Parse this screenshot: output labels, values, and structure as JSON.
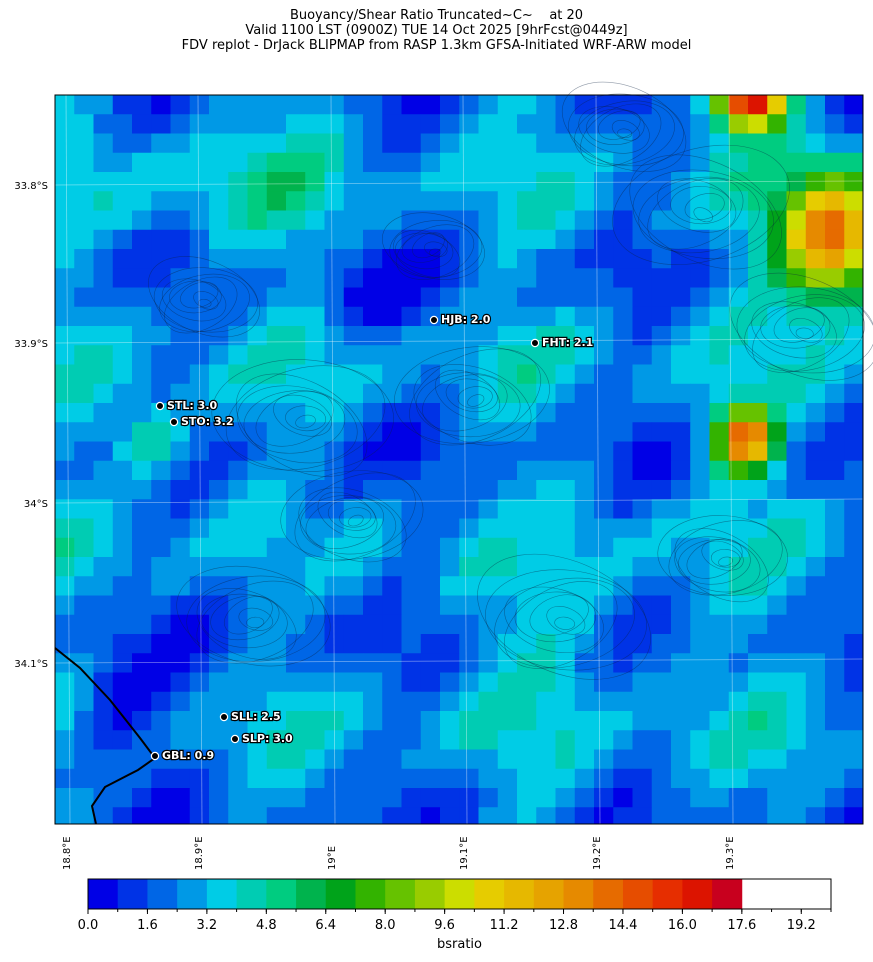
{
  "title": {
    "line1": "Buoyancy/Shear Ratio Truncated~C~    at 20",
    "line2": "Valid 1100 LST (0900Z) TUE 14 Oct 2025 [9hrFcst@0449z]",
    "line3": "FDV replot - DrJack BLIPMAP from RASP 1.3km GFSA-Initiated WRF-ARW model"
  },
  "map": {
    "lat_labels": [
      "33.8°S",
      "33.9°S",
      "34°S",
      "34.1°S"
    ],
    "lon_labels": [
      "18.8°E",
      "18.9°E",
      "19°E",
      "19.1°E",
      "19.2°E",
      "19.3°E"
    ],
    "stations": [
      {
        "id": "HJB",
        "label": "HJB: 2.0",
        "value": 2.0
      },
      {
        "id": "FHT",
        "label": "FHT: 2.1",
        "value": 2.1
      },
      {
        "id": "STL",
        "label": "STL: 3.0",
        "value": 3.0
      },
      {
        "id": "STO",
        "label": "STO: 3.2",
        "value": 3.2
      },
      {
        "id": "SLL",
        "label": "SLL: 2.5",
        "value": 2.5
      },
      {
        "id": "SLP",
        "label": "SLP: 3.0",
        "value": 3.0
      },
      {
        "id": "GBL",
        "label": "GBL: 0.9",
        "value": 0.9
      }
    ]
  },
  "colorbar": {
    "label": "bsratio",
    "min": 0.0,
    "max": 20.0,
    "step": 0.8,
    "tick_labels": [
      "0.0",
      "1.6",
      "3.2",
      "4.8",
      "6.4",
      "8.0",
      "9.6",
      "11.2",
      "12.8",
      "14.4",
      "16.0",
      "17.6",
      "19.2"
    ],
    "colors": [
      "#0000e6",
      "#0033e6",
      "#0066e6",
      "#0099e6",
      "#00cce6",
      "#00ccb3",
      "#00cc80",
      "#00b34d",
      "#00a31a",
      "#33b300",
      "#66c200",
      "#99cc00",
      "#ccdd00",
      "#e6cc00",
      "#e6b800",
      "#e6a300",
      "#e68a00",
      "#e66b00",
      "#e64d00",
      "#e62e00",
      "#dc1400",
      "#c8001e"
    ]
  }
}
